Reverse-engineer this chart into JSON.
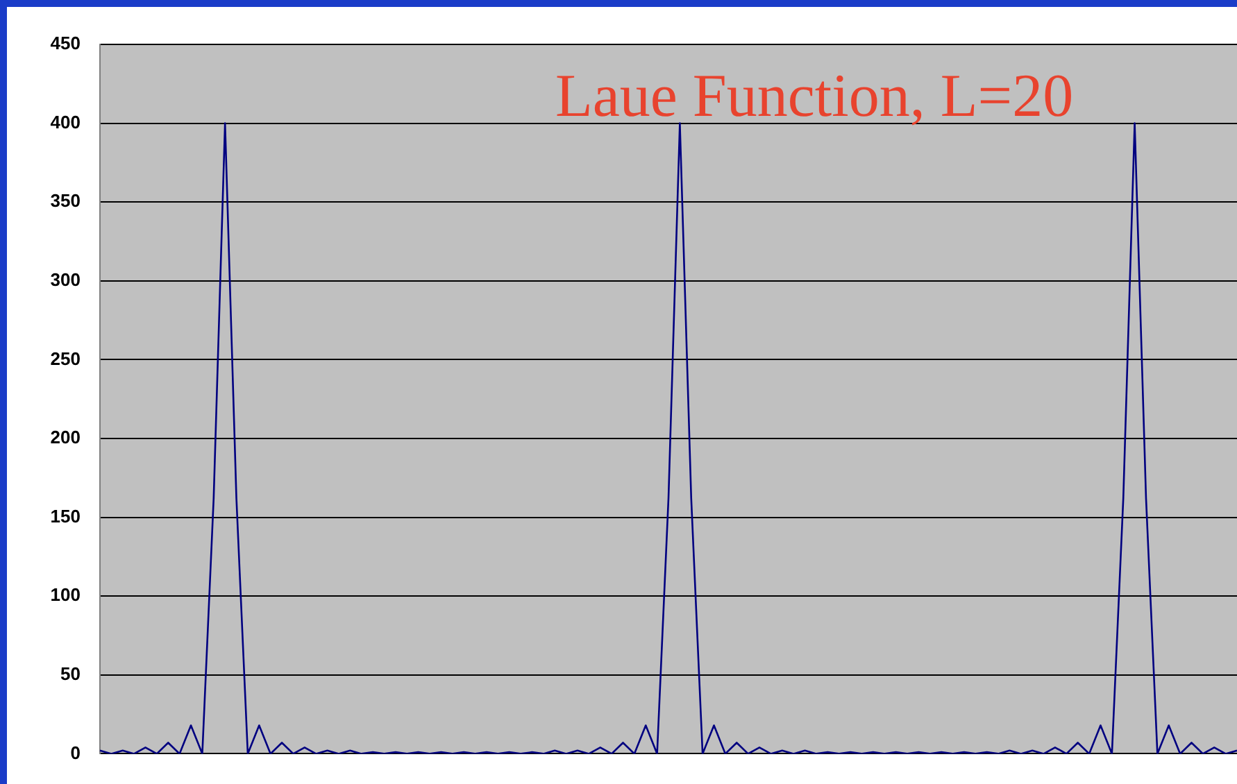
{
  "chart_data": {
    "type": "line",
    "annotations": [
      "Laue Function, L=20"
    ],
    "categories": [
      null,
      null,
      null,
      null,
      null,
      null,
      null,
      null,
      null,
      null,
      null,
      null,
      null,
      null,
      null,
      null,
      null,
      null,
      null,
      null,
      null,
      null,
      null,
      null,
      null,
      null,
      null,
      null,
      null,
      null,
      null,
      null,
      null,
      null,
      null,
      null,
      null,
      null,
      null,
      null,
      null,
      null,
      null,
      null,
      null,
      null,
      null,
      null,
      null,
      null,
      null,
      null,
      null,
      null,
      null,
      null,
      null,
      null,
      null,
      null,
      null,
      null,
      null,
      null,
      null,
      null,
      null,
      null,
      null,
      null,
      null,
      null,
      null,
      null,
      null,
      null,
      null,
      null,
      null,
      null,
      null,
      null,
      null,
      null,
      null,
      null,
      null,
      null,
      null,
      null,
      null,
      null,
      null,
      null,
      null,
      null,
      null,
      null,
      null,
      null,
      null
    ],
    "series": [
      {
        "color": "#000080",
        "values": [
          2,
          0,
          2,
          0,
          4,
          0,
          7,
          0,
          18,
          0,
          162,
          400,
          162,
          0,
          18,
          0,
          7,
          0,
          4,
          0,
          2,
          0,
          2,
          0,
          1,
          0,
          1,
          0,
          1,
          0,
          1,
          0,
          1,
          0,
          1,
          0,
          1,
          0,
          1,
          0,
          2,
          0,
          2,
          0,
          4,
          0,
          7,
          0,
          18,
          0,
          162,
          400,
          162,
          0,
          18,
          0,
          7,
          0,
          4,
          0,
          2,
          0,
          2,
          0,
          1,
          0,
          1,
          0,
          1,
          0,
          1,
          0,
          1,
          0,
          1,
          0,
          1,
          0,
          1,
          0,
          2,
          0,
          2,
          0,
          4,
          0,
          7,
          0,
          18,
          0,
          162,
          400,
          162,
          0,
          18,
          0,
          7,
          0,
          4,
          0,
          2
        ]
      }
    ],
    "ylim": [
      0,
      450
    ],
    "yticks": [
      0,
      50,
      100,
      150,
      200,
      250,
      300,
      350,
      400,
      450
    ],
    "grid": "y",
    "legend": false,
    "marker": "none",
    "line_style": "solid"
  }
}
